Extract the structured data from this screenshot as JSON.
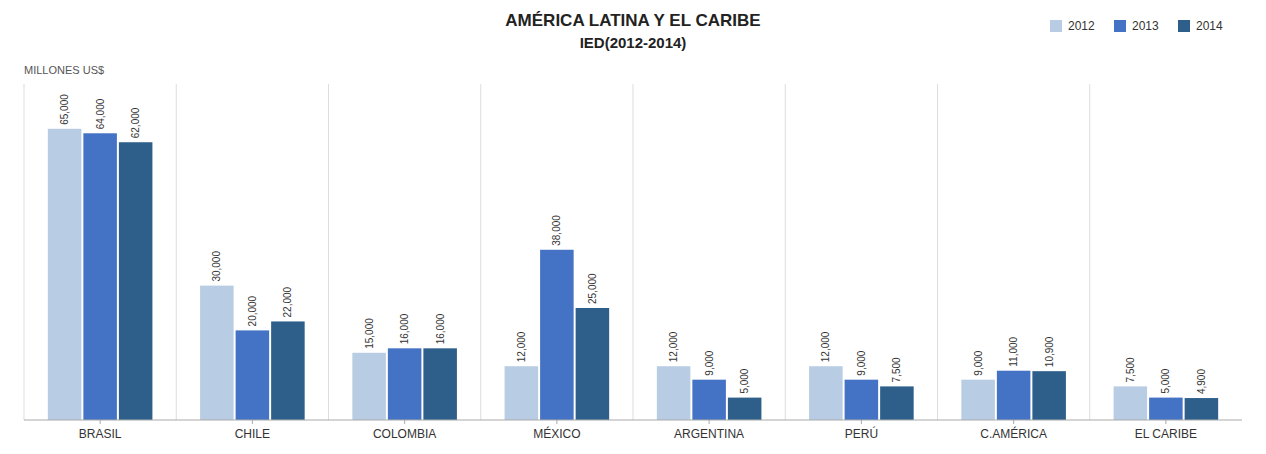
{
  "chart_data": {
    "type": "bar",
    "title": "AMÉRICA LATINA Y EL CARIBE",
    "subtitle": "IED(2012-2014)",
    "ylabel": "MILLONES US$",
    "categories": [
      "BRASIL",
      "CHILE",
      "COLOMBIA",
      "MÉXICO",
      "ARGENTINA",
      "PERÚ",
      "C.AMÉRICA",
      "EL CARIBE"
    ],
    "series": [
      {
        "name": "2012",
        "color": "#b8cce4",
        "values": [
          65000,
          30000,
          15000,
          12000,
          12000,
          12000,
          9000,
          7500
        ],
        "value_labels": [
          "65,000",
          "30,000",
          "15,000",
          "12,000",
          "12,000",
          "12,000",
          "9,000",
          "7,500"
        ]
      },
      {
        "name": "2013",
        "color": "#4472c4",
        "values": [
          64000,
          20000,
          16000,
          38000,
          9000,
          9000,
          11000,
          5000
        ],
        "value_labels": [
          "64,000",
          "20,000",
          "16,000",
          "38,000",
          "9,000",
          "9,000",
          "11,000",
          "5,000"
        ]
      },
      {
        "name": "2014",
        "color": "#2e5f8a",
        "values": [
          62000,
          22000,
          16000,
          25000,
          5000,
          7500,
          10900,
          4900
        ],
        "value_labels": [
          "62,000",
          "22,000",
          "16,000",
          "25,000",
          "5,000",
          "7,500",
          "10,900",
          "4,900"
        ]
      }
    ],
    "ylim": [
      0,
      75000
    ],
    "grid": false,
    "legend": "upper right",
    "data_labels": true,
    "tick_labels": "x"
  }
}
